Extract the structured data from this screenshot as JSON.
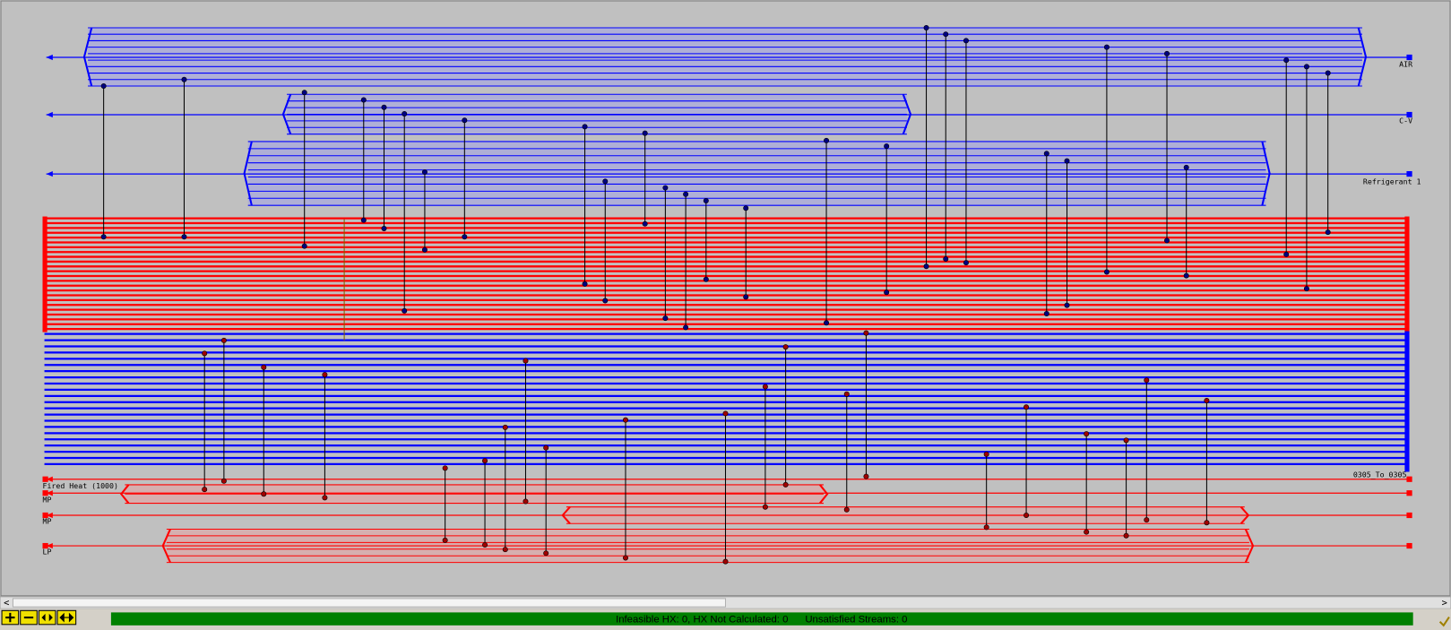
{
  "streams": [
    {
      "label": "AIR"
    },
    {
      "label": "C-V"
    },
    {
      "label": "Refrigerant 1"
    },
    {
      "label": "Fired Heat (1000)"
    },
    {
      "label": "MP"
    },
    {
      "label": "MP"
    },
    {
      "label": "LP"
    }
  ],
  "cold_process_last": "0305_To_0305",
  "status_bar": {
    "text": "Infeasible HX: 0, HX Not Calculated: 0      Unsatisfied Streams: 0"
  }
}
